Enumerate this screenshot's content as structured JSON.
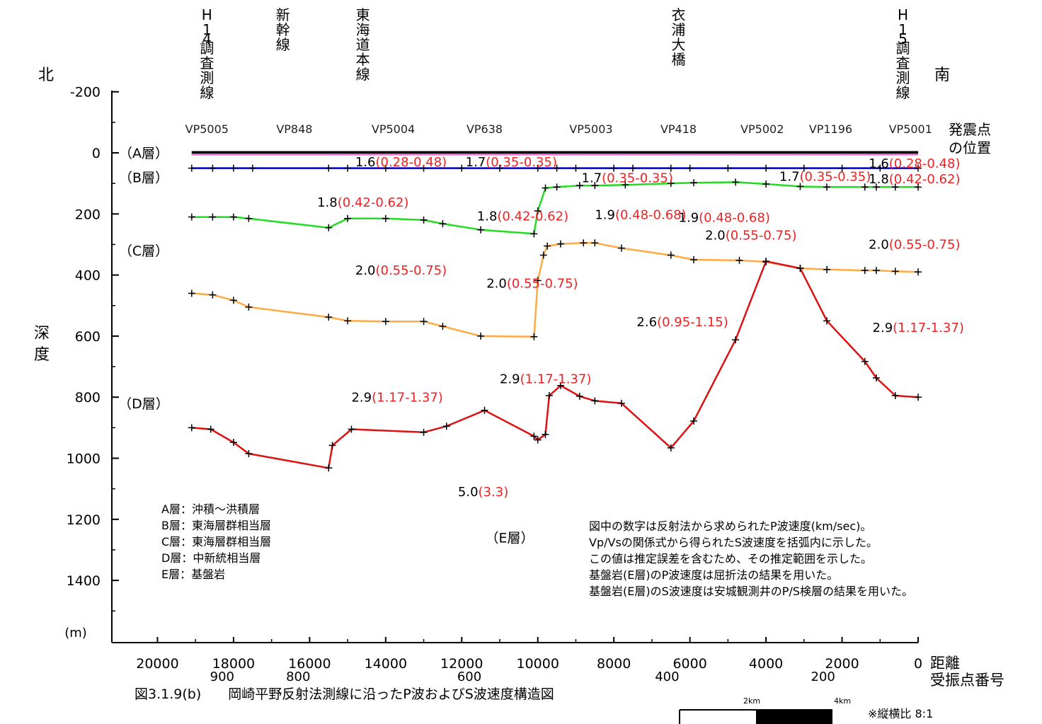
{
  "chart_data": {
    "type": "line",
    "title": "図3.1.9(b)　　岡崎平野反射法測線に沿ったP波およびS波速度構造図",
    "ylabel": "深度",
    "yunit": "(m)",
    "xlabel": "距離",
    "xlabel2": "受振点番号",
    "ylim": [
      -200,
      1600
    ],
    "xlim": [
      21200,
      0
    ],
    "yticks": [
      "-200",
      "0",
      "200",
      "400",
      "600",
      "800",
      "1000",
      "1200",
      "1400"
    ],
    "xticks": [
      "20000",
      "18000",
      "16000",
      "14000",
      "12000",
      "10000",
      "8000",
      "6000",
      "4000",
      "2000",
      "0"
    ],
    "receiver_ticks": [
      {
        "label": "900",
        "x": 18300
      },
      {
        "label": "800",
        "x": 16300
      },
      {
        "label": "600",
        "x": 11800
      },
      {
        "label": "400",
        "x": 6600
      },
      {
        "label": "200",
        "x": 2500
      }
    ],
    "direction_left": "北",
    "direction_right": "南",
    "shot_caption": [
      "発震点",
      "の位置"
    ],
    "vp_points": [
      {
        "label": "VP5005",
        "x": 18700
      },
      {
        "label": "VP848",
        "x": 16400
      },
      {
        "label": "VP5004",
        "x": 13800
      },
      {
        "label": "VP638",
        "x": 11400
      },
      {
        "label": "VP5003",
        "x": 8600
      },
      {
        "label": "VP418",
        "x": 6300
      },
      {
        "label": "VP5002",
        "x": 4100
      },
      {
        "label": "VP1196",
        "x": 2300
      },
      {
        "label": "VP5001",
        "x": 200
      }
    ],
    "top_labels": [
      {
        "text": "H14調査測線",
        "x": 18700
      },
      {
        "text": "新幹線",
        "x": 16700
      },
      {
        "text": "東海道本線",
        "x": 14600
      },
      {
        "text": "衣浦大橋",
        "x": 6300
      },
      {
        "text": "H15調査測線",
        "x": 400
      }
    ],
    "layer_labels": [
      {
        "text": "（A層）",
        "depth": 0
      },
      {
        "text": "（B層）",
        "depth": 80
      },
      {
        "text": "（C層）",
        "depth": 320
      },
      {
        "text": "（D層）",
        "depth": 820
      },
      {
        "text": "（E層）",
        "depth": 1260
      }
    ],
    "series": [
      {
        "color": "#000000",
        "marker": "none",
        "points": [
          [
            19100,
            0
          ],
          [
            0,
            0
          ]
        ]
      },
      {
        "color": "#ff66cc",
        "marker": "none",
        "points": [
          [
            19100,
            5
          ],
          [
            0,
            5
          ]
        ]
      },
      {
        "color": "#0000cc",
        "marker": "plus",
        "points": [
          [
            19100,
            50
          ],
          [
            18550,
            50
          ],
          [
            18000,
            50
          ],
          [
            17500,
            50
          ],
          [
            15500,
            50
          ],
          [
            15000,
            50
          ],
          [
            14000,
            50
          ],
          [
            13000,
            50
          ],
          [
            12000,
            50
          ],
          [
            11000,
            50
          ],
          [
            10000,
            50
          ],
          [
            9500,
            50
          ],
          [
            9000,
            50
          ],
          [
            8000,
            50
          ],
          [
            7500,
            50
          ],
          [
            6500,
            50
          ],
          [
            6000,
            50
          ],
          [
            5000,
            50
          ],
          [
            4000,
            50
          ],
          [
            3000,
            50
          ],
          [
            2000,
            50
          ],
          [
            1000,
            50
          ],
          [
            0,
            50
          ]
        ]
      },
      {
        "color": "#22dd22",
        "marker": "plus",
        "points": [
          [
            19100,
            210
          ],
          [
            18550,
            210
          ],
          [
            18000,
            210
          ],
          [
            17600,
            215
          ],
          [
            15500,
            245
          ],
          [
            15000,
            215
          ],
          [
            14000,
            215
          ],
          [
            13000,
            220
          ],
          [
            12500,
            232
          ],
          [
            11500,
            252
          ],
          [
            10100,
            265
          ],
          [
            10000,
            190
          ],
          [
            9800,
            115
          ],
          [
            9500,
            112
          ],
          [
            8900,
            107
          ],
          [
            8500,
            107
          ],
          [
            7700,
            105
          ],
          [
            6500,
            100
          ],
          [
            5900,
            98
          ],
          [
            4800,
            96
          ],
          [
            4000,
            102
          ],
          [
            3100,
            110
          ],
          [
            2400,
            112
          ],
          [
            1400,
            112
          ],
          [
            1100,
            112
          ],
          [
            600,
            112
          ],
          [
            0,
            112
          ]
        ]
      },
      {
        "color": "#ffaa44",
        "marker": "plus",
        "points": [
          [
            19100,
            460
          ],
          [
            18550,
            465
          ],
          [
            18000,
            483
          ],
          [
            17600,
            505
          ],
          [
            15500,
            538
          ],
          [
            15000,
            550
          ],
          [
            14000,
            552
          ],
          [
            13000,
            552
          ],
          [
            12500,
            568
          ],
          [
            11500,
            600
          ],
          [
            10100,
            602
          ],
          [
            10000,
            418
          ],
          [
            9850,
            335
          ],
          [
            9750,
            305
          ],
          [
            9400,
            298
          ],
          [
            8800,
            295
          ],
          [
            8500,
            295
          ],
          [
            7800,
            312
          ],
          [
            6500,
            335
          ],
          [
            5900,
            350
          ],
          [
            4700,
            352
          ],
          [
            4000,
            357
          ],
          [
            3100,
            378
          ],
          [
            2400,
            382
          ],
          [
            1400,
            385
          ],
          [
            1100,
            385
          ],
          [
            600,
            388
          ],
          [
            0,
            390
          ]
        ]
      },
      {
        "color": "#dd1111",
        "marker": "plus",
        "points": [
          [
            19100,
            900
          ],
          [
            18600,
            905
          ],
          [
            18000,
            948
          ],
          [
            17600,
            985
          ],
          [
            15500,
            1032
          ],
          [
            15400,
            958
          ],
          [
            14900,
            905
          ],
          [
            13000,
            915
          ],
          [
            12400,
            895
          ],
          [
            11400,
            843
          ],
          [
            10100,
            928
          ],
          [
            10000,
            940
          ],
          [
            9800,
            922
          ],
          [
            9700,
            795
          ],
          [
            9400,
            762
          ],
          [
            8900,
            797
          ],
          [
            8500,
            812
          ],
          [
            7800,
            820
          ],
          [
            6500,
            966
          ],
          [
            5900,
            878
          ],
          [
            4800,
            612
          ],
          [
            4000,
            355
          ],
          [
            3100,
            378
          ],
          [
            2400,
            550
          ],
          [
            1400,
            683
          ],
          [
            1100,
            737
          ],
          [
            600,
            795
          ],
          [
            0,
            800
          ]
        ]
      }
    ],
    "velocity_labels": [
      {
        "vp": "1.6",
        "vs": "(0.28-0.48)",
        "x": 14800,
        "depth": 28
      },
      {
        "vp": "1.7",
        "vs": "(0.35-0.35)",
        "x": 11900,
        "depth": 28
      },
      {
        "vp": "1.6",
        "vs": "(0.28-0.48)",
        "x": 1300,
        "depth": 33
      },
      {
        "vp": "1.7",
        "vs": "(0.35-0.35)",
        "x": 8850,
        "depth": 80
      },
      {
        "vp": "1.7",
        "vs": "(0.35-0.35)",
        "x": 3650,
        "depth": 75
      },
      {
        "vp": "1.8",
        "vs": "(0.42-0.62)",
        "x": 1300,
        "depth": 84
      },
      {
        "vp": "1.8",
        "vs": "(0.42-0.62)",
        "x": 15800,
        "depth": 160
      },
      {
        "vp": "1.8",
        "vs": "(0.42-0.62)",
        "x": 11600,
        "depth": 205
      },
      {
        "vp": "1.9",
        "vs": "(0.48-0.68)",
        "x": 8500,
        "depth": 200
      },
      {
        "vp": "1.9",
        "vs": "(0.48-0.68)",
        "x": 6300,
        "depth": 210
      },
      {
        "vp": "2.0",
        "vs": "(0.55-0.75)",
        "x": 5600,
        "depth": 268
      },
      {
        "vp": "2.0",
        "vs": "(0.55-0.75)",
        "x": 1300,
        "depth": 298
      },
      {
        "vp": "2.0",
        "vs": "(0.55-0.75)",
        "x": 14800,
        "depth": 382
      },
      {
        "vp": "2.0",
        "vs": "(0.55-0.75)",
        "x": 11350,
        "depth": 425
      },
      {
        "vp": "2.6",
        "vs": "(0.95-1.15)",
        "x": 7400,
        "depth": 552
      },
      {
        "vp": "2.9",
        "vs": "(1.17-1.37)",
        "x": 1200,
        "depth": 570
      },
      {
        "vp": "2.9",
        "vs": "(1.17-1.37)",
        "x": 11000,
        "depth": 738
      },
      {
        "vp": "2.9",
        "vs": "(1.17-1.37)",
        "x": 14900,
        "depth": 798
      },
      {
        "vp": "5.0",
        "vs": "(3.3)",
        "x": 12100,
        "depth": 1108
      }
    ],
    "legend": [
      "A層：沖積～洪積層",
      "B層：東海層群相当層",
      "C層：東海層群相当層",
      "D層：中新統相当層",
      "E層：基盤岩"
    ],
    "notes": [
      "図中の数字は反射法から求められたP波速度(km/sec)。",
      "Vp/Vsの関係式から得られたS波速度を括弧内に示した。",
      "この値は推定誤差を含むため、その推定範囲を示した。",
      "基盤岩(E層)のP波速度は屈折法の結果を用いた。",
      "基盤岩(E層)のS波速度は安城観測井のP/S検層の結果を用いた。"
    ],
    "scale_bar": {
      "label_2": "2km",
      "label_4": "4km",
      "ratio": "※縦横比 8:1"
    },
    "colors": {
      "vp_text": "#000000",
      "vs_text": "#ee2222"
    }
  }
}
